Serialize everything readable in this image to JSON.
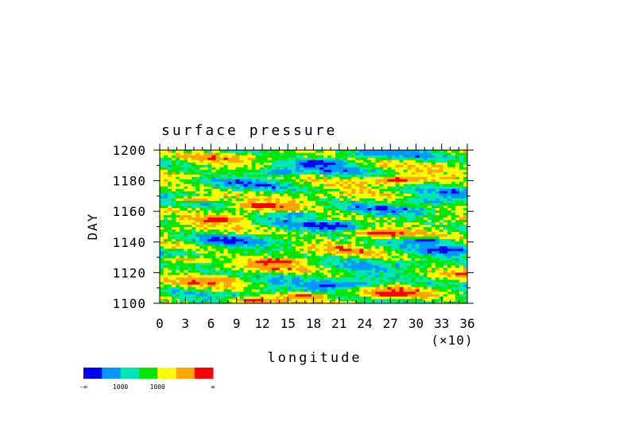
{
  "chart_data": {
    "type": "heatmap",
    "title": "surface pressure",
    "xlabel": "longitude",
    "ylabel": "DAY",
    "x_scale_note": "(×10)",
    "xlim": [
      0,
      36
    ],
    "ylim": [
      1100,
      1200
    ],
    "x_ticks": [
      "0",
      "3",
      "6",
      "9",
      "12",
      "15",
      "18",
      "21",
      "24",
      "27",
      "30",
      "33",
      "36"
    ],
    "y_ticks": [
      "1100",
      "1120",
      "1140",
      "1160",
      "1180",
      "1200"
    ],
    "colorbar": {
      "colors": [
        "#0000ff",
        "#0099ff",
        "#00e6b3",
        "#00e600",
        "#ffff00",
        "#ffa500",
        "#ff0000"
      ],
      "labels": [
        "-∞",
        "1000",
        "1000",
        "∞"
      ]
    },
    "field_pattern": [
      {
        "day": 1102,
        "lon": 11,
        "level": 6
      },
      {
        "day": 1105,
        "lon": 17,
        "level": 6
      },
      {
        "day": 1106,
        "lon": 27,
        "level": 6
      },
      {
        "day": 1112,
        "lon": 20,
        "level": 0
      },
      {
        "day": 1113,
        "lon": 23,
        "level": 1
      },
      {
        "day": 1116,
        "lon": 7,
        "level": 5
      },
      {
        "day": 1128,
        "lon": 14,
        "level": 6
      },
      {
        "day": 1129,
        "lon": 3,
        "level": 5
      },
      {
        "day": 1135,
        "lon": 34,
        "level": 0
      },
      {
        "day": 1141,
        "lon": 8,
        "level": 0
      },
      {
        "day": 1141,
        "lon": 31,
        "level": 0
      },
      {
        "day": 1146,
        "lon": 26,
        "level": 6
      },
      {
        "day": 1151,
        "lon": 20,
        "level": 0
      },
      {
        "day": 1155,
        "lon": 7,
        "level": 6
      },
      {
        "day": 1158,
        "lon": 16,
        "level": 1
      },
      {
        "day": 1164,
        "lon": 12,
        "level": 6
      },
      {
        "day": 1167,
        "lon": 32,
        "level": 1
      },
      {
        "day": 1168,
        "lon": 4,
        "level": 5
      },
      {
        "day": 1181,
        "lon": 28,
        "level": 6
      },
      {
        "day": 1186,
        "lon": 14,
        "level": 1
      },
      {
        "day": 1192,
        "lon": 19,
        "level": 0
      },
      {
        "day": 1198,
        "lon": 26,
        "level": 1
      }
    ]
  }
}
